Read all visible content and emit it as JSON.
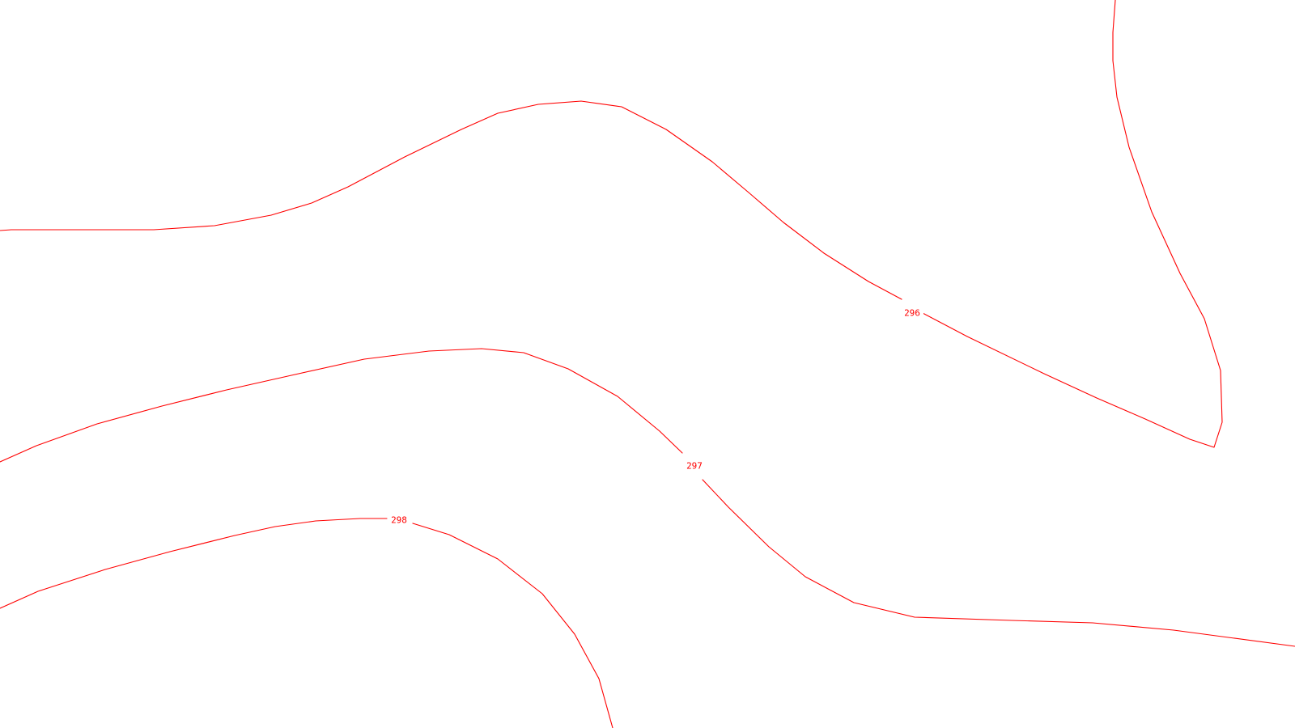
{
  "map": {
    "background_color": "#ffffff",
    "contour_color": "#ff0000",
    "contours": [
      {
        "elevation": 296,
        "label": "296"
      },
      {
        "elevation": 297,
        "label": "297"
      },
      {
        "elevation": 298,
        "label": "298"
      }
    ]
  }
}
